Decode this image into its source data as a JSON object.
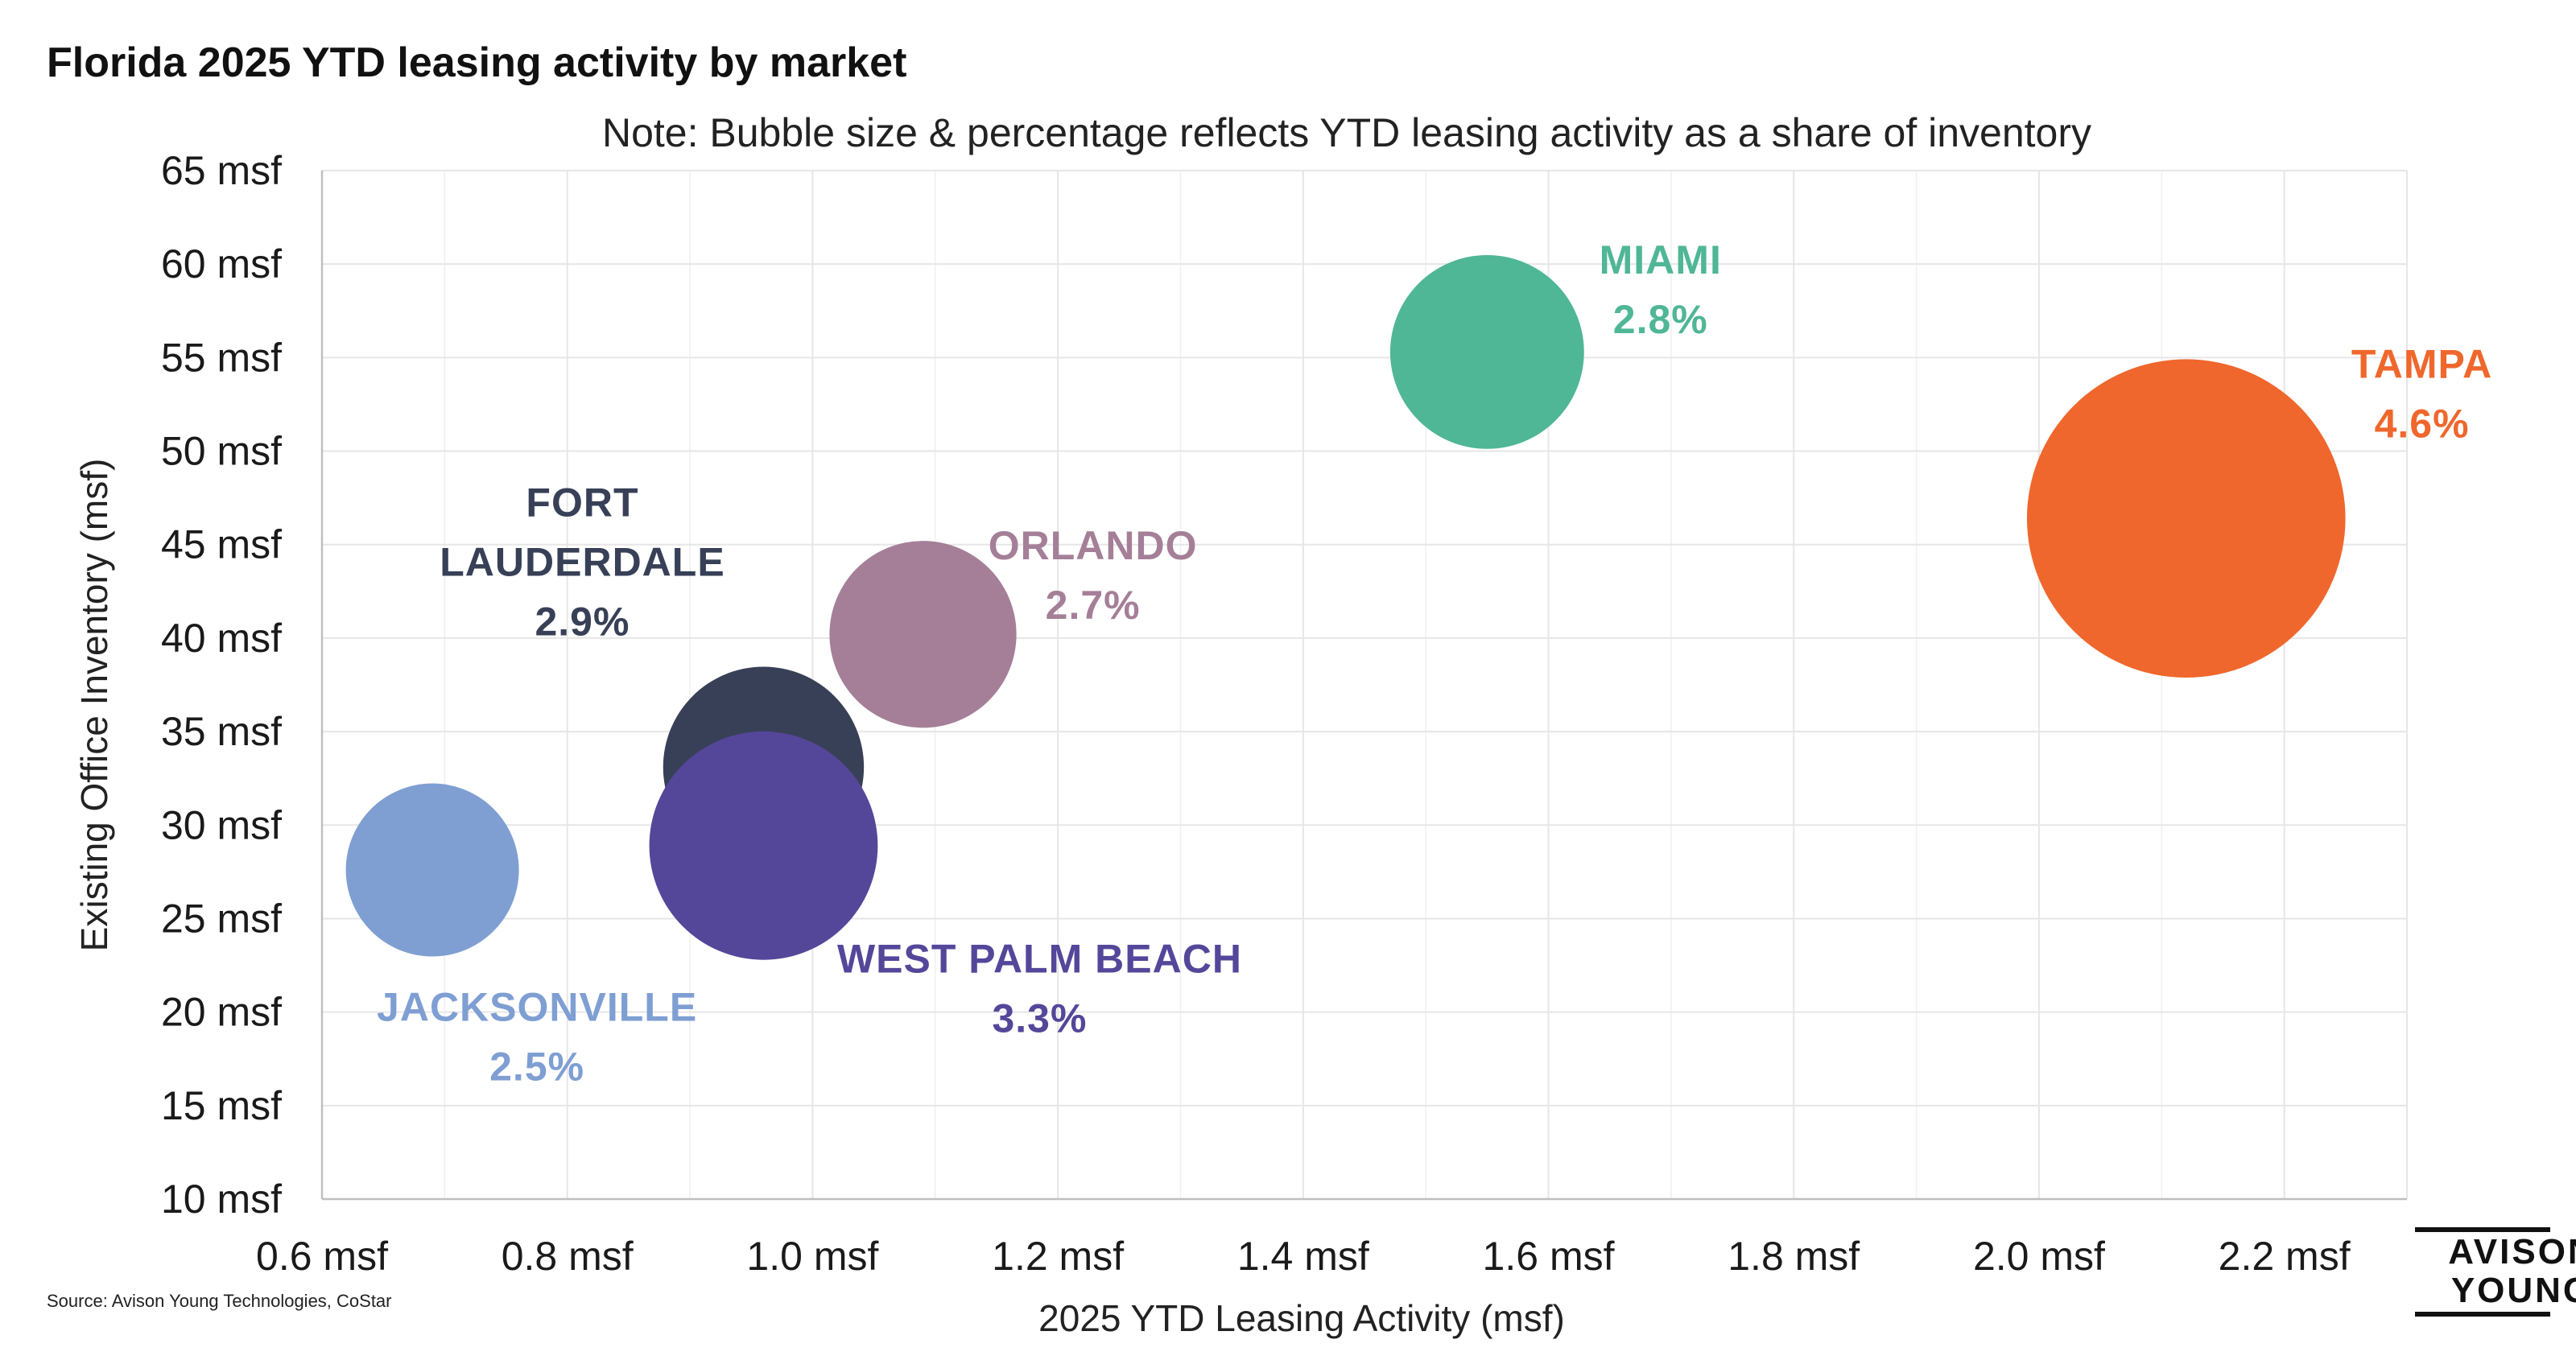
{
  "chart_data": {
    "type": "bubble",
    "title": "Florida 2025 YTD leasing activity by market",
    "subtitle": "Note: Bubble size & percentage reflects YTD leasing activity as a share of inventory",
    "xlabel": "2025 YTD Leasing Activity (msf)",
    "ylabel": "Existing Office Inventory (msf)",
    "xlim": [
      0.6,
      2.3
    ],
    "ylim": [
      10,
      65
    ],
    "xticks": [
      0.6,
      0.8,
      1.0,
      1.2,
      1.4,
      1.6,
      1.8,
      2.0,
      2.2
    ],
    "xtick_labels": [
      "0.6 msf",
      "0.8 msf",
      "1.0 msf",
      "1.2 msf",
      "1.4 msf",
      "1.6 msf",
      "1.8 msf",
      "2.0 msf",
      "2.2 msf"
    ],
    "yticks": [
      10,
      15,
      20,
      25,
      30,
      35,
      40,
      45,
      50,
      55,
      60,
      65
    ],
    "ytick_labels": [
      "10 msf",
      "15 msf",
      "20 msf",
      "25 msf",
      "30 msf",
      "35 msf",
      "40 msf",
      "45 msf",
      "50 msf",
      "55 msf",
      "60 msf",
      "65 msf"
    ],
    "grid": true,
    "source": "Source: Avison Young Technologies, CoStar",
    "logo_text": [
      "AVISON",
      "YOUNG"
    ],
    "series": [
      {
        "name": "JACKSONVILLE",
        "name_lines": [
          "JACKSONVILLE"
        ],
        "label": "2.5%",
        "x": 0.69,
        "y": 27.6,
        "share": 2.5,
        "color": "#7f9fd3",
        "label_pos": "below"
      },
      {
        "name": "FORT LAUDERDALE",
        "name_lines": [
          "FORT",
          "LAUDERDALE"
        ],
        "label": "2.9%",
        "x": 0.96,
        "y": 33.1,
        "share": 2.9,
        "color": "#384057",
        "label_pos": "upper-left"
      },
      {
        "name": "WEST PALM BEACH",
        "name_lines": [
          "WEST PALM BEACH"
        ],
        "label": "3.3%",
        "x": 0.96,
        "y": 28.9,
        "share": 3.3,
        "color": "#54479a",
        "label_pos": "lower-right"
      },
      {
        "name": "ORLANDO",
        "name_lines": [
          "ORLANDO"
        ],
        "label": "2.7%",
        "x": 1.09,
        "y": 40.2,
        "share": 2.7,
        "color": "#a57f98",
        "label_pos": "upper-right"
      },
      {
        "name": "MIAMI",
        "name_lines": [
          "MIAMI"
        ],
        "label": "2.8%",
        "x": 1.55,
        "y": 55.3,
        "share": 2.8,
        "color": "#4fb696",
        "label_pos": "upper-right"
      },
      {
        "name": "TAMPA",
        "name_lines": [
          "TAMPA"
        ],
        "label": "4.6%",
        "x": 2.12,
        "y": 46.4,
        "share": 4.6,
        "color": "#ef672c",
        "label_pos": "upper-right"
      }
    ]
  }
}
